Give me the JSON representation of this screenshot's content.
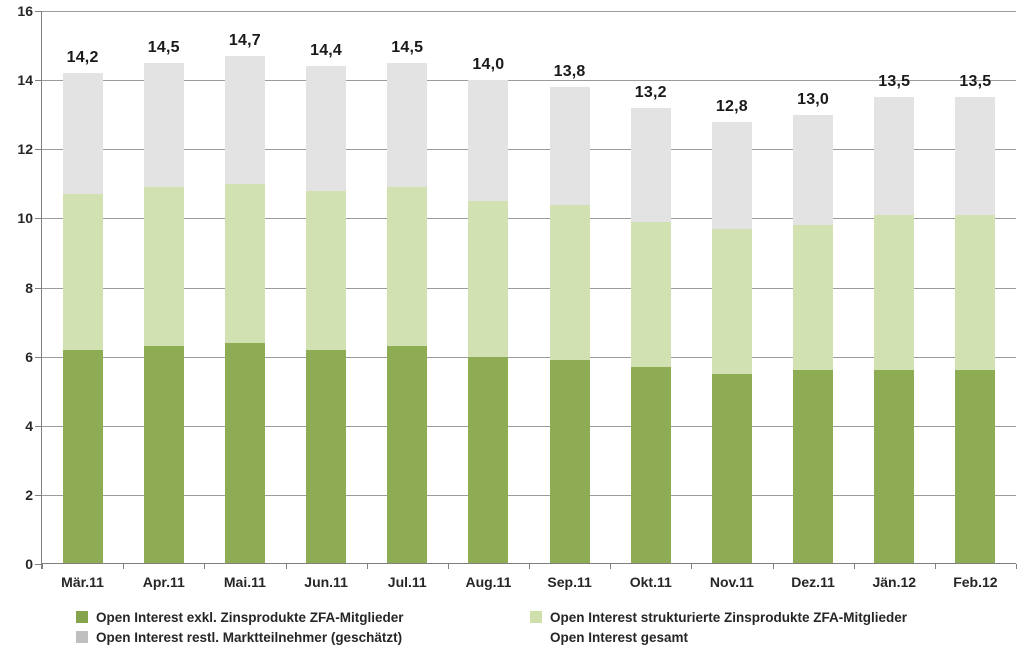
{
  "chart_data": {
    "type": "bar",
    "stacked": true,
    "title": "",
    "xlabel": "",
    "ylabel": "",
    "categories": [
      "Mär.11",
      "Apr.11",
      "Mai.11",
      "Jun.11",
      "Jul.11",
      "Aug.11",
      "Sep.11",
      "Okt.11",
      "Nov.11",
      "Dez.11",
      "Jän.12",
      "Feb.12"
    ],
    "series": [
      {
        "name": "Open Interest exkl. Zinsprodukte ZFA-Mitglieder",
        "color": "#8dac54",
        "values": [
          6.2,
          6.3,
          6.4,
          6.2,
          6.3,
          6.0,
          5.9,
          5.7,
          5.5,
          5.6,
          5.6,
          5.6
        ]
      },
      {
        "name": "Open Interest strukturierte Zinsprodukte ZFA-Mitglieder",
        "color": "#d2e1b2",
        "values": [
          4.5,
          4.6,
          4.6,
          4.6,
          4.6,
          4.5,
          4.5,
          4.2,
          4.2,
          4.2,
          4.5,
          4.5
        ]
      },
      {
        "name": "Open Interest restl. Marktteilnehmer (geschätzt)",
        "color": "#e3e3e3",
        "values": [
          3.5,
          3.6,
          3.7,
          3.6,
          3.6,
          3.5,
          3.4,
          3.3,
          3.1,
          3.2,
          3.4,
          3.4
        ]
      }
    ],
    "totals_name": "Open Interest gesamt",
    "total_labels": [
      "14,2",
      "14,5",
      "14,7",
      "14,4",
      "14,5",
      "14,0",
      "13,8",
      "13,2",
      "12,8",
      "13,0",
      "13,5",
      "13,5"
    ],
    "totals": [
      14.2,
      14.5,
      14.7,
      14.4,
      14.5,
      14.0,
      13.8,
      13.2,
      12.8,
      13.0,
      13.5,
      13.5
    ],
    "ylim": [
      0,
      16
    ],
    "yticks": [
      0,
      2,
      4,
      6,
      8,
      10,
      12,
      14,
      16
    ],
    "grid": true,
    "legend_position": "bottom"
  },
  "legend": {
    "columns": [
      [
        {
          "label": "Open Interest exkl. Zinsprodukte ZFA-Mitglieder",
          "swatch": "#86a44e"
        },
        {
          "label": "Open Interest restl. Marktteilnehmer (geschätzt)",
          "swatch": "#bfbfbf"
        }
      ],
      [
        {
          "label": "Open Interest strukturierte Zinsprodukte ZFA-Mitglieder",
          "swatch": "#cfe0ac"
        },
        {
          "label": "Open Interest gesamt",
          "swatch": null
        }
      ]
    ]
  },
  "colors": {
    "gridline": "#9b9b9b",
    "axis": "#7f7f7f",
    "tick_text": "#262626",
    "data_label_text": "#1a1a1a",
    "background": "#ffffff"
  }
}
